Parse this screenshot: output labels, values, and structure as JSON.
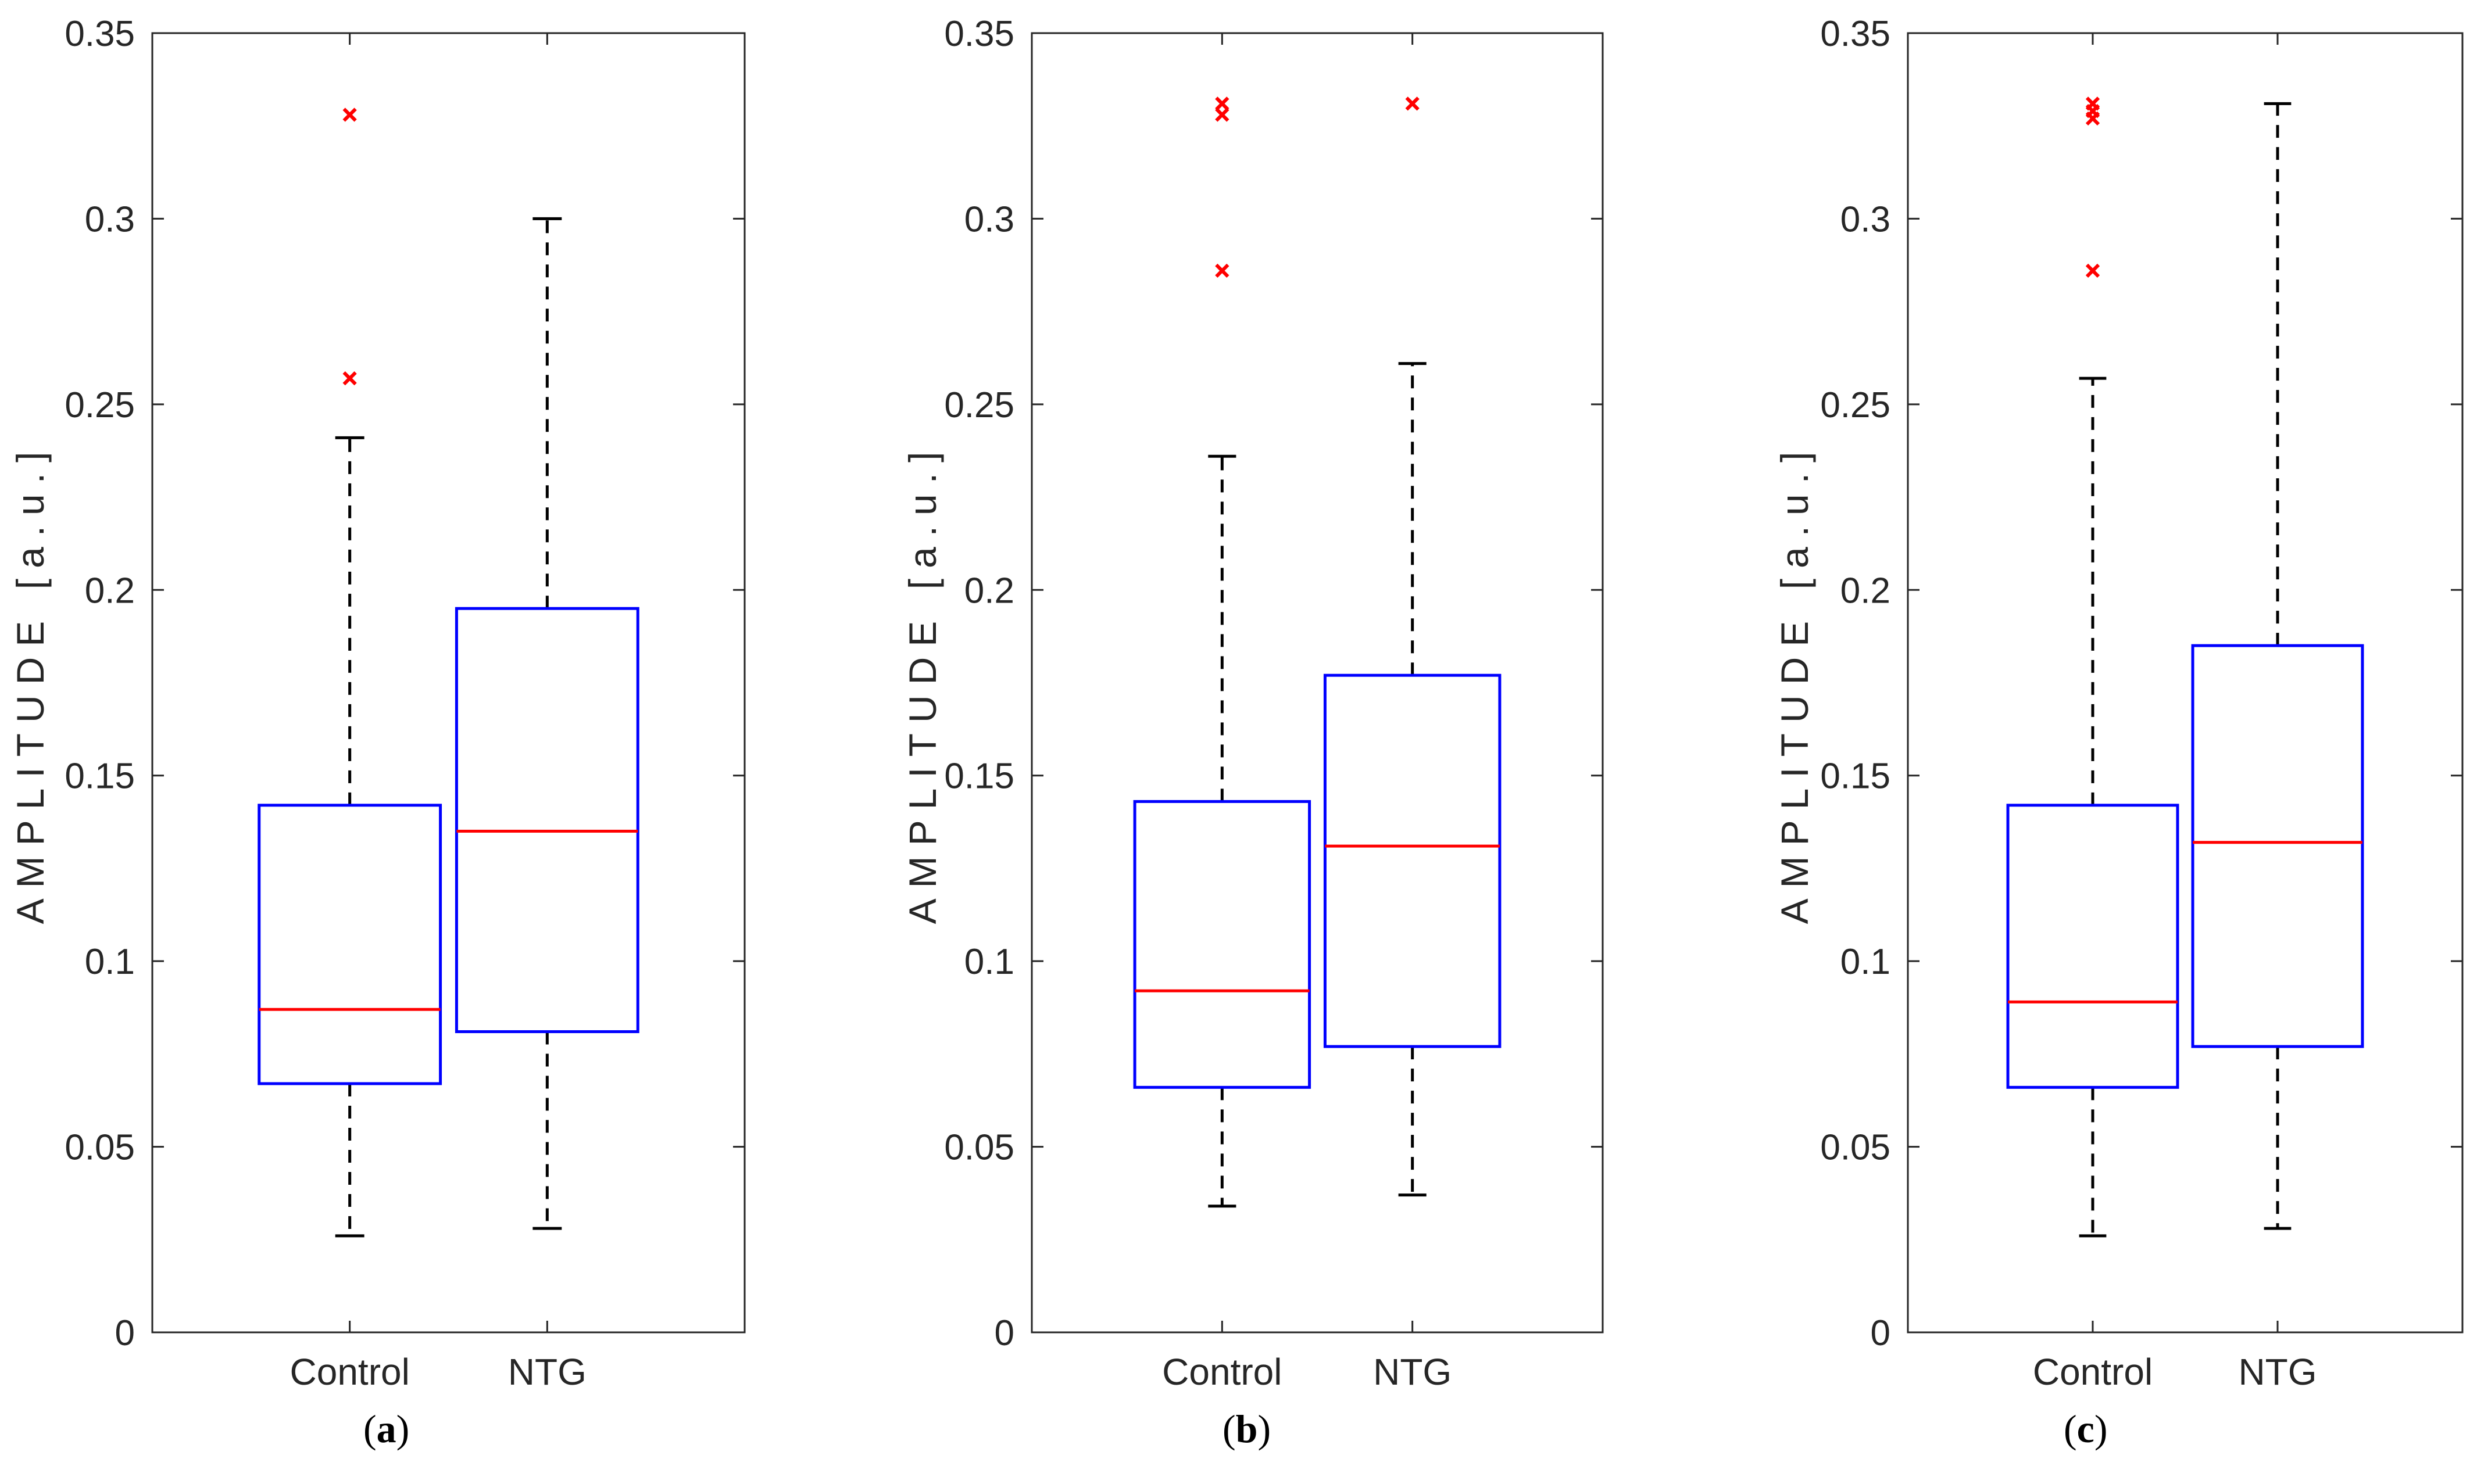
{
  "chart_data": [
    {
      "type": "box",
      "panel": "(a)",
      "panel_letter": "a",
      "ylabel": "AMPLITUDE   [a.u.]",
      "ylim": [
        0,
        0.35
      ],
      "yticks": [
        0,
        0.05,
        0.1,
        0.15,
        0.2,
        0.25,
        0.3,
        0.35
      ],
      "ytick_labels": [
        "0",
        "0.05",
        "0.1",
        "0.15",
        "0.2",
        "0.25",
        "0.3",
        "0.35"
      ],
      "categories": [
        "Control",
        "NTG"
      ],
      "boxes": [
        {
          "name": "Control",
          "whisker_low": 0.026,
          "q1": 0.067,
          "median": 0.087,
          "q3": 0.142,
          "whisker_high": 0.241,
          "outliers": [
            0.257,
            0.328
          ]
        },
        {
          "name": "NTG",
          "whisker_low": 0.028,
          "q1": 0.081,
          "median": 0.135,
          "q3": 0.195,
          "whisker_high": 0.3,
          "outliers": []
        }
      ]
    },
    {
      "type": "box",
      "panel": "(b)",
      "panel_letter": "b",
      "ylabel": "AMPLITUDE   [a.u.]",
      "ylim": [
        0,
        0.35
      ],
      "yticks": [
        0,
        0.05,
        0.1,
        0.15,
        0.2,
        0.25,
        0.3,
        0.35
      ],
      "ytick_labels": [
        "0",
        "0.05",
        "0.1",
        "0.15",
        "0.2",
        "0.25",
        "0.3",
        "0.35"
      ],
      "categories": [
        "Control",
        "NTG"
      ],
      "boxes": [
        {
          "name": "Control",
          "whisker_low": 0.034,
          "q1": 0.066,
          "median": 0.092,
          "q3": 0.143,
          "whisker_high": 0.236,
          "outliers": [
            0.286,
            0.328,
            0.331
          ]
        },
        {
          "name": "NTG",
          "whisker_low": 0.037,
          "q1": 0.077,
          "median": 0.131,
          "q3": 0.177,
          "whisker_high": 0.261,
          "outliers": [
            0.331
          ]
        }
      ]
    },
    {
      "type": "box",
      "panel": "(c)",
      "panel_letter": "c",
      "ylabel": "AMPLITUDE   [a.u.]",
      "ylim": [
        0,
        0.35
      ],
      "yticks": [
        0,
        0.05,
        0.1,
        0.15,
        0.2,
        0.25,
        0.3,
        0.35
      ],
      "ytick_labels": [
        "0",
        "0.05",
        "0.1",
        "0.15",
        "0.2",
        "0.25",
        "0.3",
        "0.35"
      ],
      "categories": [
        "Control",
        "NTG"
      ],
      "boxes": [
        {
          "name": "Control",
          "whisker_low": 0.026,
          "q1": 0.066,
          "median": 0.089,
          "q3": 0.142,
          "whisker_high": 0.257,
          "outliers": [
            0.286,
            0.327,
            0.329,
            0.331
          ]
        },
        {
          "name": "NTG",
          "whisker_low": 0.028,
          "q1": 0.077,
          "median": 0.132,
          "q3": 0.185,
          "whisker_high": 0.331,
          "outliers": []
        }
      ]
    }
  ],
  "colors": {
    "box": "#0000ff",
    "median": "#ff0000",
    "outlier": "#ff0000",
    "whisker": "#000000",
    "axis": "#262626"
  }
}
